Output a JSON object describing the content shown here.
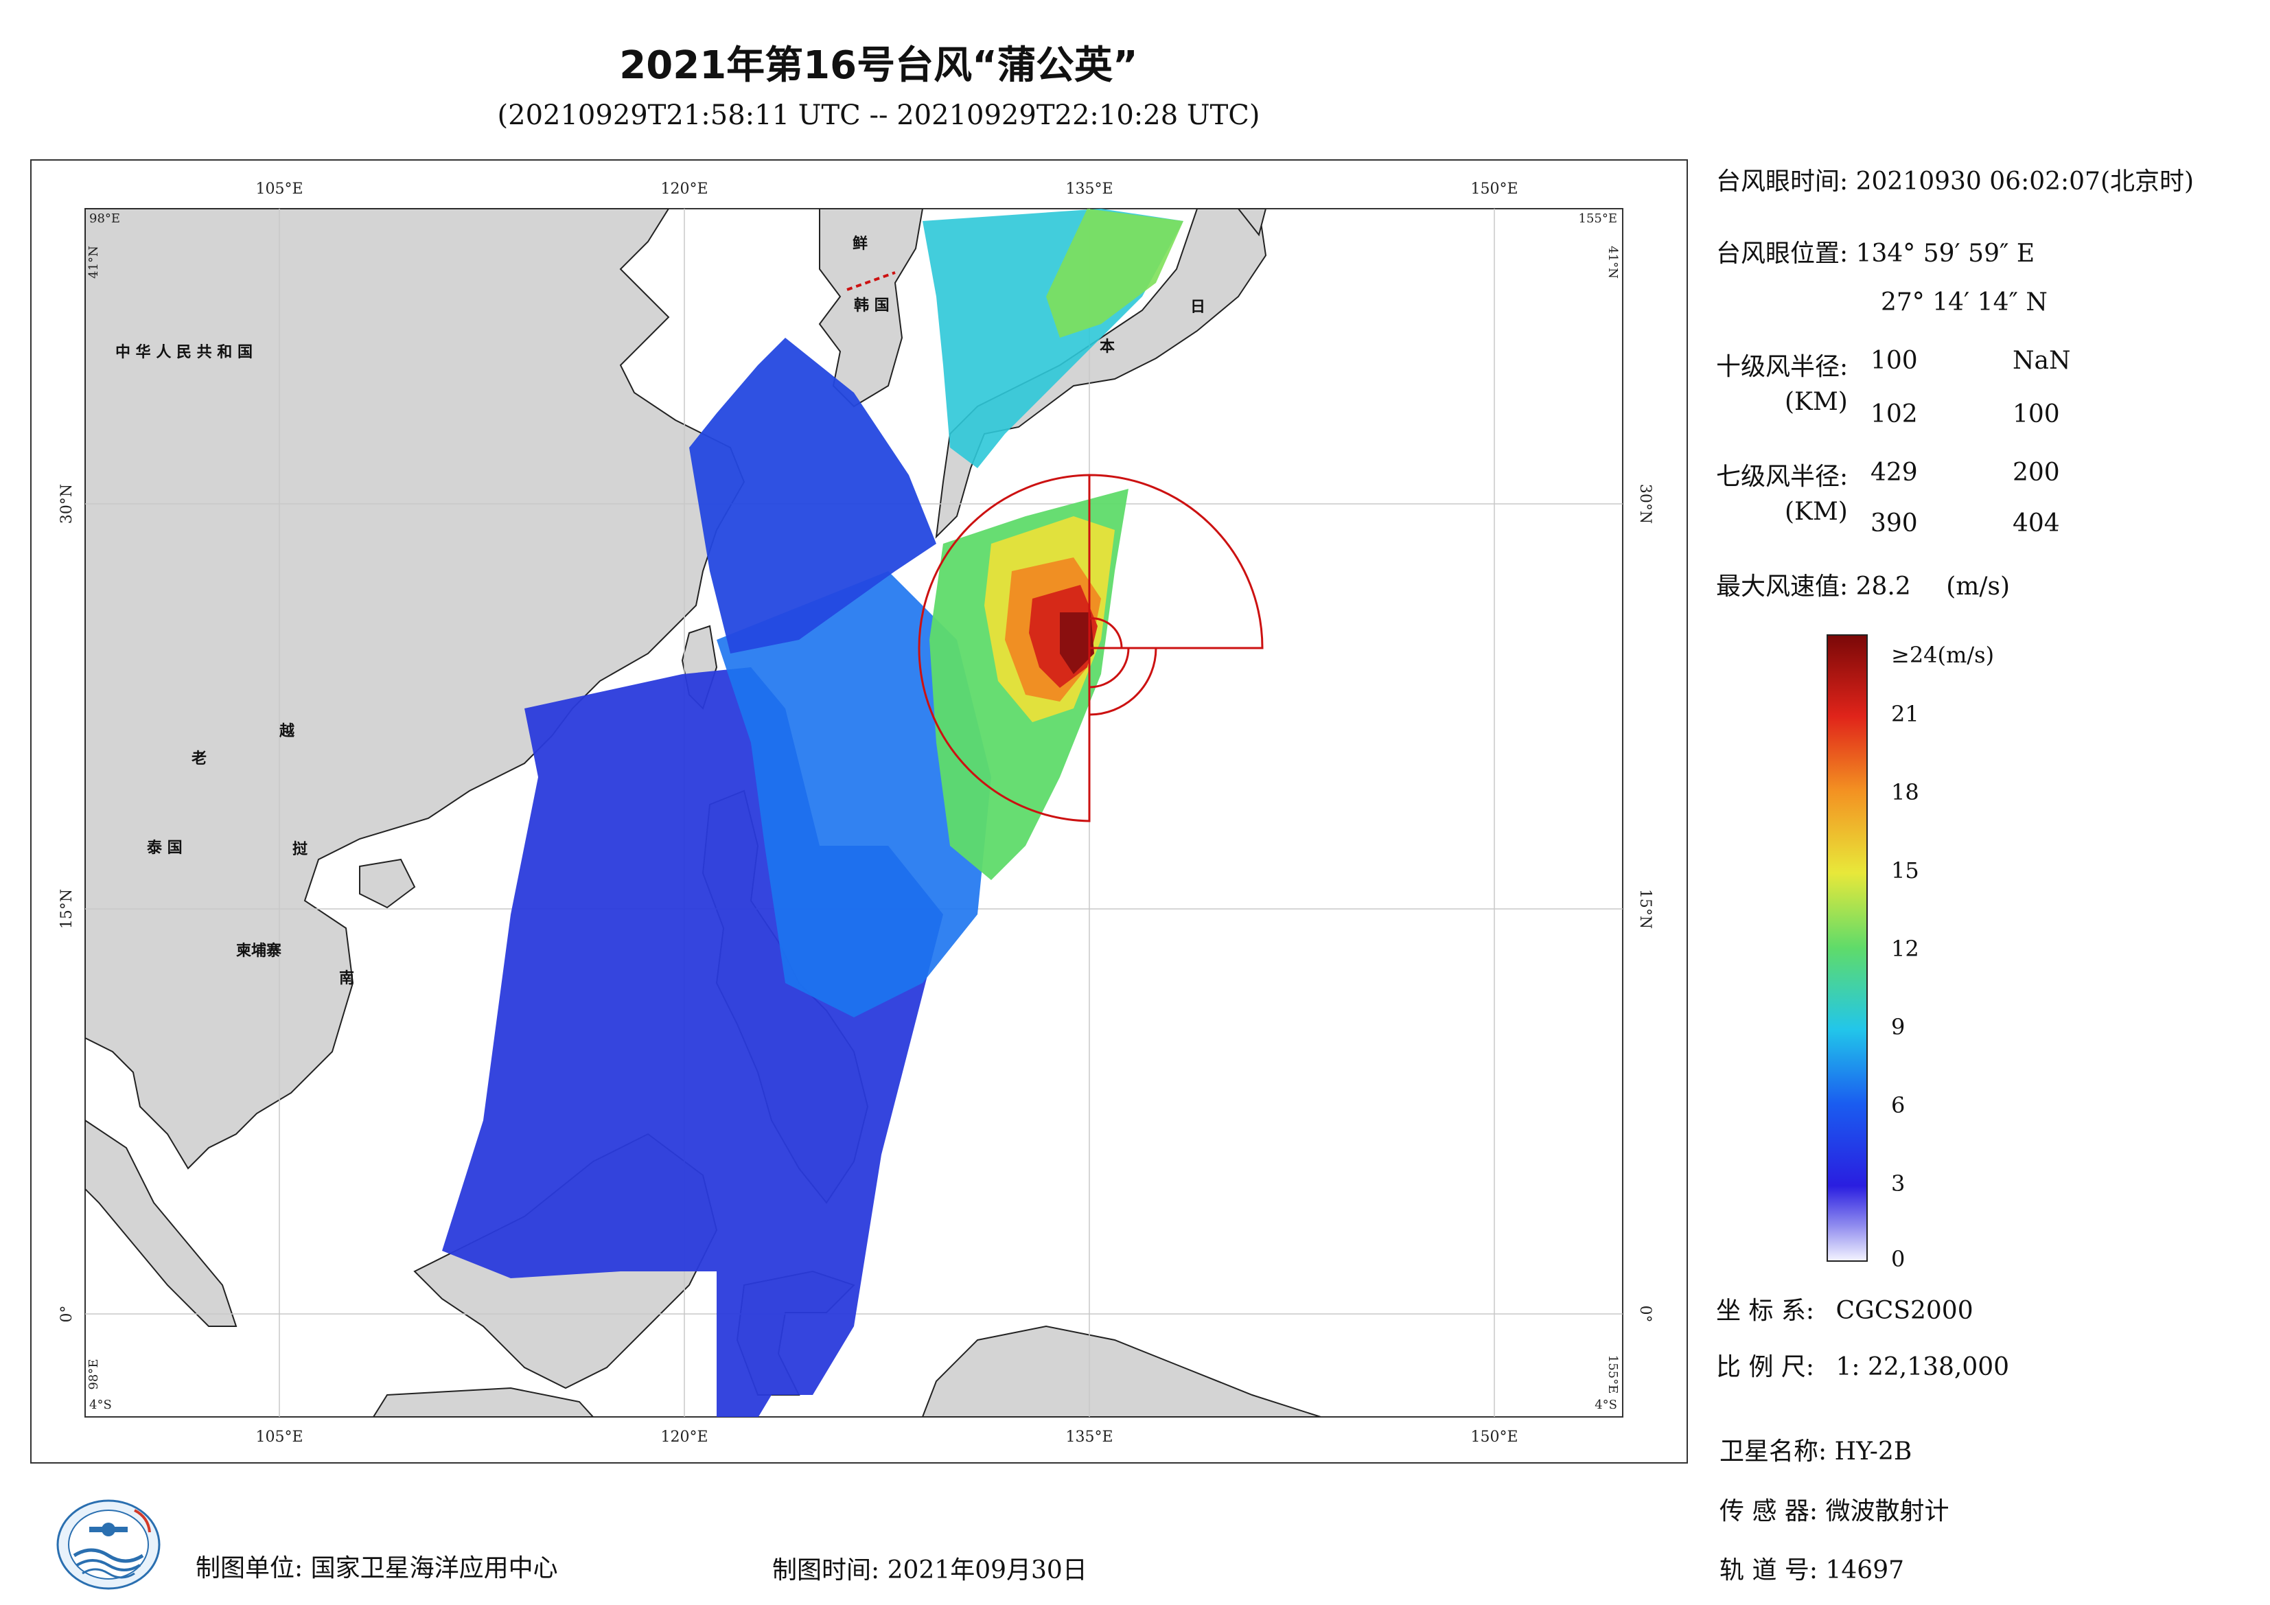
{
  "title": "2021年第16号台风“蒲公英”",
  "subtitle": "(20210929T21:58:11 UTC -- 20210929T22:10:28 UTC)",
  "map": {
    "lon_ticks": [
      "105°E",
      "120°E",
      "135°E",
      "150°E"
    ],
    "lat_ticks_left": [
      "30°N",
      "15°N",
      "0°"
    ],
    "lat_ticks_right": [
      "30°N",
      "15°N",
      "0°"
    ],
    "corner_labels": {
      "top_left_lon": "98°E",
      "top_left_lat": "41°N",
      "top_right_lon": "155°E",
      "top_right_lat": "41°N",
      "bottom_left_lon": "98°E",
      "bottom_left_lat": "4°S",
      "bottom_right_lon": "155°E",
      "bottom_right_lat": "4°S"
    },
    "country_labels": [
      "中 华 人 民 共 和 国",
      "老",
      "越",
      "泰  国",
      "挝",
      "柬埔寨",
      "南",
      "鲜",
      "韩 国",
      "日",
      "本"
    ],
    "colors": {
      "land": "#d4d4d4",
      "coast": "#222222",
      "ring": "#cc1111",
      "sea": "#ffffff"
    }
  },
  "info": {
    "eye_time_label": "台风眼时间:",
    "eye_time_value": "20210930 06:02:07(北京时)",
    "eye_pos_label": "台风眼位置:",
    "eye_lon": "134° 59′ 59″ E",
    "eye_lat": "27° 14′ 14″ N",
    "r10_label": "十级风半径:",
    "r10_unit": "(KM)",
    "r10_values": [
      "100",
      "NaN",
      "102",
      "100"
    ],
    "r7_label": "七级风半径:",
    "r7_unit": "(KM)",
    "r7_values": [
      "429",
      "200",
      "390",
      "404"
    ],
    "max_wind_label": "最大风速值:",
    "max_wind_value": "28.2",
    "max_wind_unit": "(m/s)"
  },
  "colorbar": {
    "top_label": "≥24(m/s)",
    "ticks": [
      "21",
      "18",
      "15",
      "12",
      "9",
      "6",
      "3",
      "0"
    ],
    "tick_values": [
      21,
      18,
      15,
      12,
      9,
      6,
      3,
      0
    ],
    "max": 24
  },
  "meta": {
    "crs_label": "坐 标 系:",
    "crs_value": "CGCS2000",
    "scale_label": "比 例 尺:",
    "scale_value": "1: 22,138,000",
    "satellite_label": "卫星名称:",
    "satellite_value": "HY-2B",
    "sensor_label": "传 感 器:",
    "sensor_value": "微波散射计",
    "orbit_label": "轨 道 号:",
    "orbit_value": "14697",
    "maker_label": "制图单位:",
    "maker_value": "国家卫星海洋应用中心",
    "date_label": "制图时间:",
    "date_value": "2021年09月30日"
  }
}
